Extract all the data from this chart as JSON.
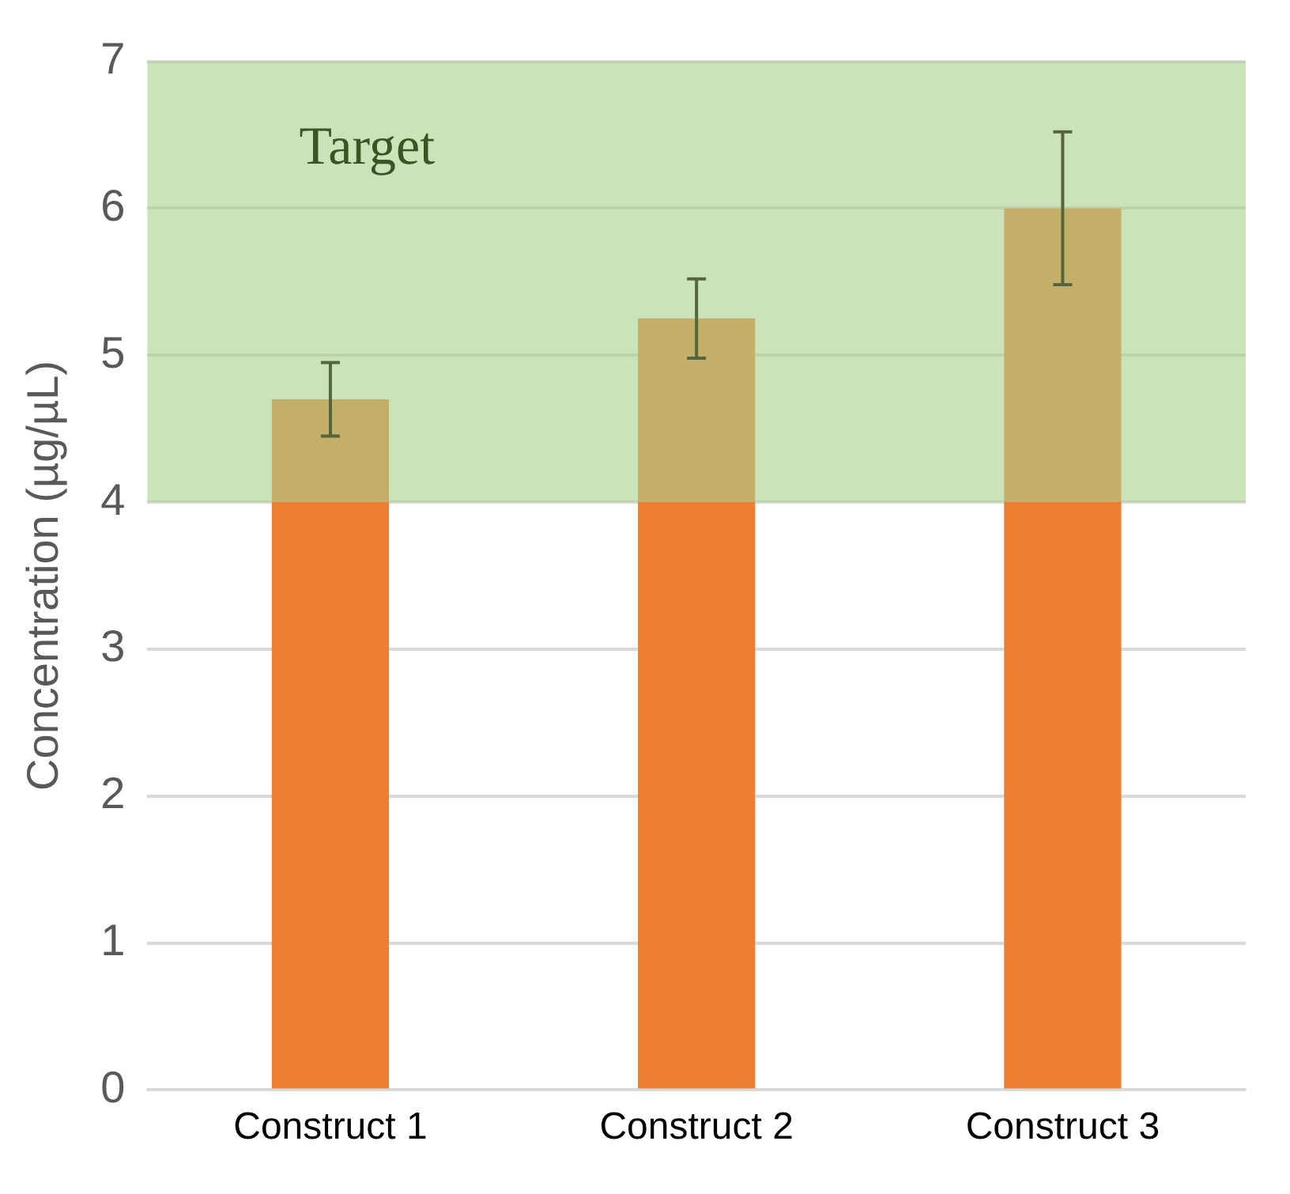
{
  "chart_data": {
    "type": "bar",
    "ylabel": "Concentration (µg/µL)",
    "categories": [
      "Construct 1",
      "Construct 2",
      "Construct 3"
    ],
    "values": [
      4.7,
      5.25,
      6.0
    ],
    "errors": [
      0.25,
      0.27,
      0.52
    ],
    "color": "#ed7d31",
    "ylim": [
      0,
      7
    ],
    "yticks": [
      0,
      1,
      2,
      3,
      4,
      5,
      6,
      7
    ],
    "grid": "y",
    "legend": false,
    "bands": [
      {
        "axis": "y",
        "from": 4,
        "to": 7,
        "label": "Target",
        "color": "#a9d18e"
      }
    ]
  }
}
